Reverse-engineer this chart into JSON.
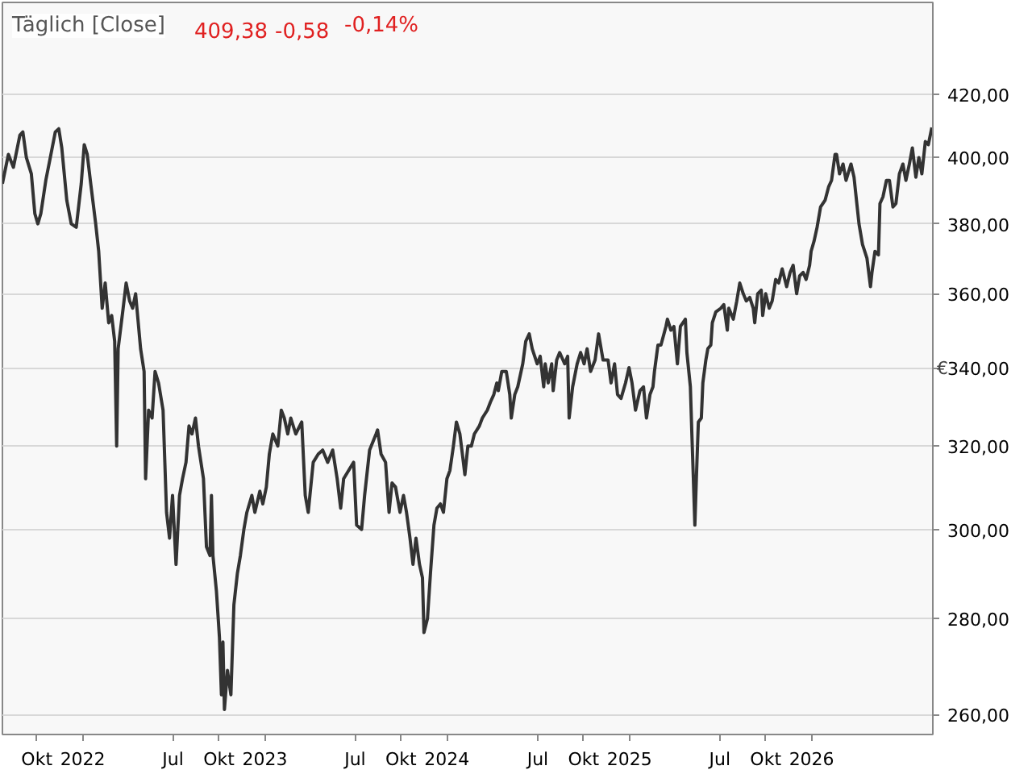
{
  "chart_data": {
    "type": "line",
    "title": "Täglich [Close]",
    "ylabel": "€",
    "annotations": [
      "409,38",
      "-0,58",
      "-0,14%"
    ],
    "log": "y",
    "grid": "y",
    "marker": "none",
    "line_style": "solid",
    "xlim": [
      "2021-07-24",
      "2026-09-01"
    ],
    "ylim": [
      256,
      451
    ],
    "xticks": [
      {
        "value": "2021-10-01",
        "label": "Okt"
      },
      {
        "value": "2022-01-01",
        "label": "2022"
      },
      {
        "value": "2022-07-01",
        "label": "Jul"
      },
      {
        "value": "2022-10-01",
        "label": "Okt"
      },
      {
        "value": "2023-01-01",
        "label": "2023"
      },
      {
        "value": "2023-07-01",
        "label": "Jul"
      },
      {
        "value": "2023-10-01",
        "label": "Okt"
      },
      {
        "value": "2024-01-01",
        "label": "2024"
      },
      {
        "value": "2024-07-01",
        "label": "Jul"
      },
      {
        "value": "2024-10-01",
        "label": "Okt"
      },
      {
        "value": "2025-01-01",
        "label": "2025"
      },
      {
        "value": "2025-07-01",
        "label": "Jul"
      },
      {
        "value": "2025-10-01",
        "label": "Okt"
      },
      {
        "value": "2026-01-01",
        "label": "2026"
      }
    ],
    "yticks": [
      {
        "value": 260,
        "label": "260,00"
      },
      {
        "value": 280,
        "label": "280,00"
      },
      {
        "value": 300,
        "label": "300,00"
      },
      {
        "value": 320,
        "label": "320,00"
      },
      {
        "value": 340,
        "label": "340,00"
      },
      {
        "value": 360,
        "label": "360,00"
      },
      {
        "value": 380,
        "label": "380,00"
      },
      {
        "value": 400,
        "label": "400,00"
      },
      {
        "value": 420,
        "label": "420,00"
      }
    ],
    "series": [
      {
        "color": "#333333",
        "x": [
          "2021-07-24",
          "2021-08-05",
          "2021-08-15",
          "2021-08-28",
          "2021-09-03",
          "2021-09-10",
          "2021-09-20",
          "2021-09-27",
          "2021-10-03",
          "2021-10-09",
          "2021-10-19",
          "2021-10-28",
          "2021-11-07",
          "2021-11-14",
          "2021-11-20",
          "2021-11-30",
          "2021-12-09",
          "2021-12-19",
          "2021-12-29",
          "2022-01-04",
          "2022-01-10",
          "2022-01-17",
          "2022-01-27",
          "2022-02-02",
          "2022-02-09",
          "2022-02-15",
          "2022-02-22",
          "2022-02-28",
          "2022-03-06",
          "2022-03-10",
          "2022-03-13",
          "2022-03-23",
          "2022-03-29",
          "2022-04-05",
          "2022-04-11",
          "2022-04-17",
          "2022-04-27",
          "2022-05-04",
          "2022-05-07",
          "2022-05-13",
          "2022-05-20",
          "2022-05-26",
          "2022-06-02",
          "2022-06-11",
          "2022-06-18",
          "2022-06-24",
          "2022-06-30",
          "2022-07-07",
          "2022-07-14",
          "2022-07-20",
          "2022-07-27",
          "2022-08-02",
          "2022-08-08",
          "2022-08-15",
          "2022-08-21",
          "2022-08-31",
          "2022-09-06",
          "2022-09-13",
          "2022-09-16",
          "2022-09-19",
          "2022-09-26",
          "2022-10-02",
          "2022-10-06",
          "2022-10-09",
          "2022-10-12",
          "2022-10-18",
          "2022-10-25",
          "2022-10-31",
          "2022-11-07",
          "2022-11-13",
          "2022-11-20",
          "2022-11-26",
          "2022-12-06",
          "2022-12-12",
          "2022-12-22",
          "2022-12-28",
          "2023-01-04",
          "2023-01-10",
          "2023-01-17",
          "2023-01-27",
          "2023-02-03",
          "2023-02-09",
          "2023-02-16",
          "2023-02-22",
          "2023-03-04",
          "2023-03-16",
          "2023-03-23",
          "2023-03-29",
          "2023-04-08",
          "2023-04-18",
          "2023-04-27",
          "2023-05-07",
          "2023-05-17",
          "2023-05-26",
          "2023-06-02",
          "2023-06-08",
          "2023-06-18",
          "2023-06-28",
          "2023-07-04",
          "2023-07-14",
          "2023-07-20",
          "2023-07-30",
          "2023-08-12",
          "2023-08-15",
          "2023-08-22",
          "2023-08-31",
          "2023-09-07",
          "2023-09-13",
          "2023-09-20",
          "2023-09-29",
          "2023-10-06",
          "2023-10-12",
          "2023-10-19",
          "2023-10-25",
          "2023-10-31",
          "2023-11-07",
          "2023-11-13",
          "2023-11-16",
          "2023-11-23",
          "2023-11-29",
          "2023-12-06",
          "2023-12-12",
          "2023-12-19",
          "2023-12-25",
          "2024-01-01",
          "2024-01-07",
          "2024-01-14",
          "2024-01-20",
          "2024-01-27",
          "2024-02-03",
          "2024-02-06",
          "2024-02-12",
          "2024-02-19",
          "2024-02-25",
          "2024-03-06",
          "2024-03-12",
          "2024-03-22",
          "2024-03-28",
          "2024-04-04",
          "2024-04-10",
          "2024-04-13",
          "2024-04-20",
          "2024-04-29",
          "2024-05-06",
          "2024-05-09",
          "2024-05-16",
          "2024-05-22",
          "2024-06-01",
          "2024-06-07",
          "2024-06-14",
          "2024-06-20",
          "2024-06-30",
          "2024-07-06",
          "2024-07-13",
          "2024-07-16",
          "2024-07-22",
          "2024-07-29",
          "2024-08-01",
          "2024-08-08",
          "2024-08-14",
          "2024-08-24",
          "2024-08-30",
          "2024-09-02",
          "2024-09-09",
          "2024-09-18",
          "2024-09-25",
          "2024-10-02",
          "2024-10-08",
          "2024-10-15",
          "2024-10-24",
          "2024-10-31",
          "2024-11-09",
          "2024-11-19",
          "2024-11-25",
          "2024-12-02",
          "2024-12-08",
          "2024-12-15",
          "2024-12-24",
          "2024-12-31",
          "2025-01-06",
          "2025-01-13",
          "2025-01-22",
          "2025-01-29",
          "2025-02-04",
          "2025-02-11",
          "2025-02-17",
          "2025-02-20",
          "2025-02-27",
          "2025-03-05",
          "2025-03-15",
          "2025-03-18",
          "2025-03-25",
          "2025-03-31",
          "2025-04-07",
          "2025-04-13",
          "2025-04-23",
          "2025-04-26",
          "2025-05-03",
          "2025-05-06",
          "2025-05-09",
          "2025-05-12",
          "2025-05-15",
          "2025-05-19",
          "2025-05-25",
          "2025-05-28",
          "2025-06-03",
          "2025-06-07",
          "2025-06-13",
          "2025-06-16",
          "2025-06-23",
          "2025-07-03",
          "2025-07-09",
          "2025-07-16",
          "2025-07-19",
          "2025-07-28",
          "2025-08-04",
          "2025-08-10",
          "2025-08-17",
          "2025-08-23",
          "2025-08-30",
          "2025-09-06",
          "2025-09-09",
          "2025-09-15",
          "2025-09-22",
          "2025-09-25",
          "2025-10-01",
          "2025-10-08",
          "2025-10-14",
          "2025-10-21",
          "2025-10-27",
          "2025-11-03",
          "2025-11-12",
          "2025-11-19",
          "2025-11-25",
          "2025-12-02",
          "2025-12-08",
          "2025-12-15",
          "2025-12-21",
          "2025-12-28",
          "2025-12-31",
          "2026-01-06",
          "2026-01-12",
          "2026-01-19",
          "2026-01-28",
          "2026-02-04",
          "2026-02-10",
          "2026-02-17",
          "2026-02-20",
          "2026-02-26",
          "2026-03-05",
          "2026-03-11",
          "2026-03-21",
          "2026-03-27",
          "2026-04-06",
          "2026-04-13",
          "2026-04-22",
          "2026-04-29",
          "2026-05-02",
          "2026-05-08",
          "2026-05-15",
          "2026-05-18",
          "2026-05-24",
          "2026-05-31",
          "2026-06-06",
          "2026-06-13",
          "2026-06-19",
          "2026-06-26",
          "2026-07-03",
          "2026-07-09",
          "2026-07-16",
          "2026-07-22",
          "2026-07-29",
          "2026-08-04",
          "2026-08-10",
          "2026-08-17",
          "2026-08-23",
          "2026-08-30"
        ],
        "values": [
          392,
          401,
          397,
          407,
          408,
          400,
          395,
          383,
          380,
          383,
          393,
          400,
          408,
          409,
          403,
          387,
          380,
          379,
          392,
          404,
          401,
          392,
          380,
          372,
          356,
          363,
          352,
          354,
          347,
          320,
          345,
          356,
          363,
          358,
          356,
          360,
          345,
          339,
          312,
          329,
          327,
          339,
          336,
          329,
          304,
          298,
          308,
          292,
          308,
          312,
          316,
          325,
          323,
          327,
          320,
          312,
          296,
          294,
          308,
          294,
          286,
          276,
          264,
          275,
          261,
          269,
          264,
          283,
          290,
          294,
          300,
          304,
          308,
          304,
          309,
          306,
          310,
          318,
          323,
          320,
          329,
          327,
          323,
          327,
          323,
          326,
          308,
          304,
          316,
          318,
          319,
          316,
          319,
          312,
          305,
          312,
          314,
          316,
          301,
          300,
          308,
          319,
          323,
          324,
          318,
          316,
          304,
          311,
          310,
          304,
          308,
          304,
          298,
          292,
          298,
          292,
          289,
          277,
          280,
          290,
          301,
          305,
          306,
          304,
          312,
          314,
          320,
          326,
          323,
          316,
          313,
          320,
          320,
          323,
          325,
          327,
          329,
          331,
          333,
          336,
          334,
          339,
          339,
          333,
          327,
          333,
          335,
          341,
          347,
          349,
          345,
          341,
          343,
          335,
          341,
          336,
          341,
          334,
          342,
          344,
          341,
          343,
          327,
          335,
          341,
          344,
          341,
          345,
          339,
          342,
          349,
          342,
          342,
          336,
          341,
          333,
          332,
          336,
          340,
          336,
          329,
          334,
          335,
          327,
          333,
          335,
          339,
          346,
          346,
          351,
          353,
          350,
          351,
          341,
          351,
          353,
          344,
          335,
          323,
          312,
          301,
          312,
          326,
          327,
          336,
          342,
          345,
          346,
          352,
          355,
          356,
          357,
          350,
          356,
          353,
          358,
          363,
          360,
          358,
          359,
          356,
          352,
          360,
          361,
          354,
          360,
          356,
          358,
          364,
          363,
          367,
          362,
          366,
          368,
          360,
          365,
          366,
          364,
          368,
          372,
          375,
          379,
          385,
          387,
          391,
          393,
          401,
          401,
          395,
          398,
          393,
          398,
          394,
          380,
          374,
          370,
          362,
          366,
          372,
          371,
          386,
          388,
          393,
          393,
          385,
          386,
          395,
          398,
          393,
          398,
          403,
          394,
          400,
          395,
          405,
          404,
          409.38
        ]
      }
    ]
  }
}
